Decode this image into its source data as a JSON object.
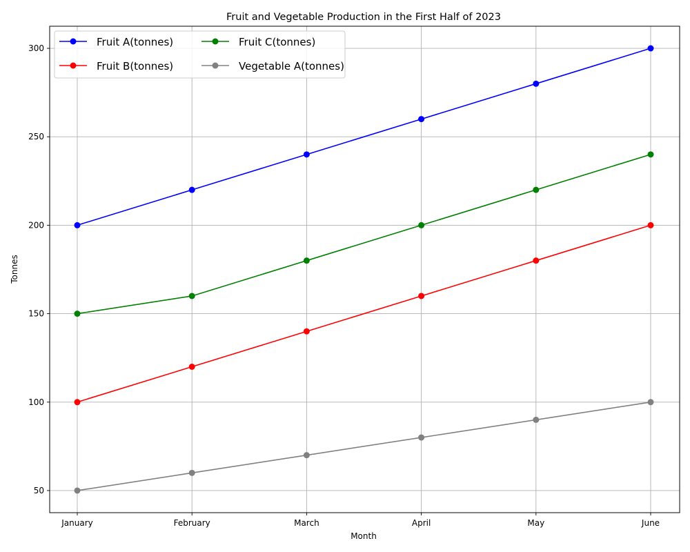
{
  "chart_data": {
    "type": "line",
    "title": "Fruit and Vegetable Production in the First Half of 2023",
    "xlabel": "Month",
    "ylabel": "Tonnes",
    "categories": [
      "January",
      "February",
      "March",
      "April",
      "May",
      "June"
    ],
    "yticks": [
      50,
      100,
      150,
      200,
      250,
      300
    ],
    "ylim": [
      37.5,
      312.5
    ],
    "grid": true,
    "legend": {
      "placement": "top-left",
      "columns": 2
    },
    "series": [
      {
        "name": "Fruit A(tonnes)",
        "color": "#0000ff",
        "values": [
          200,
          220,
          240,
          260,
          280,
          300
        ]
      },
      {
        "name": "Fruit B(tonnes)",
        "color": "#ff0000",
        "values": [
          100,
          120,
          140,
          160,
          180,
          200
        ]
      },
      {
        "name": "Fruit C(tonnes)",
        "color": "#008000",
        "values": [
          150,
          160,
          180,
          200,
          220,
          240
        ]
      },
      {
        "name": "Vegetable A(tonnes)",
        "color": "#808080",
        "values": [
          50,
          60,
          70,
          80,
          90,
          100
        ]
      }
    ]
  }
}
